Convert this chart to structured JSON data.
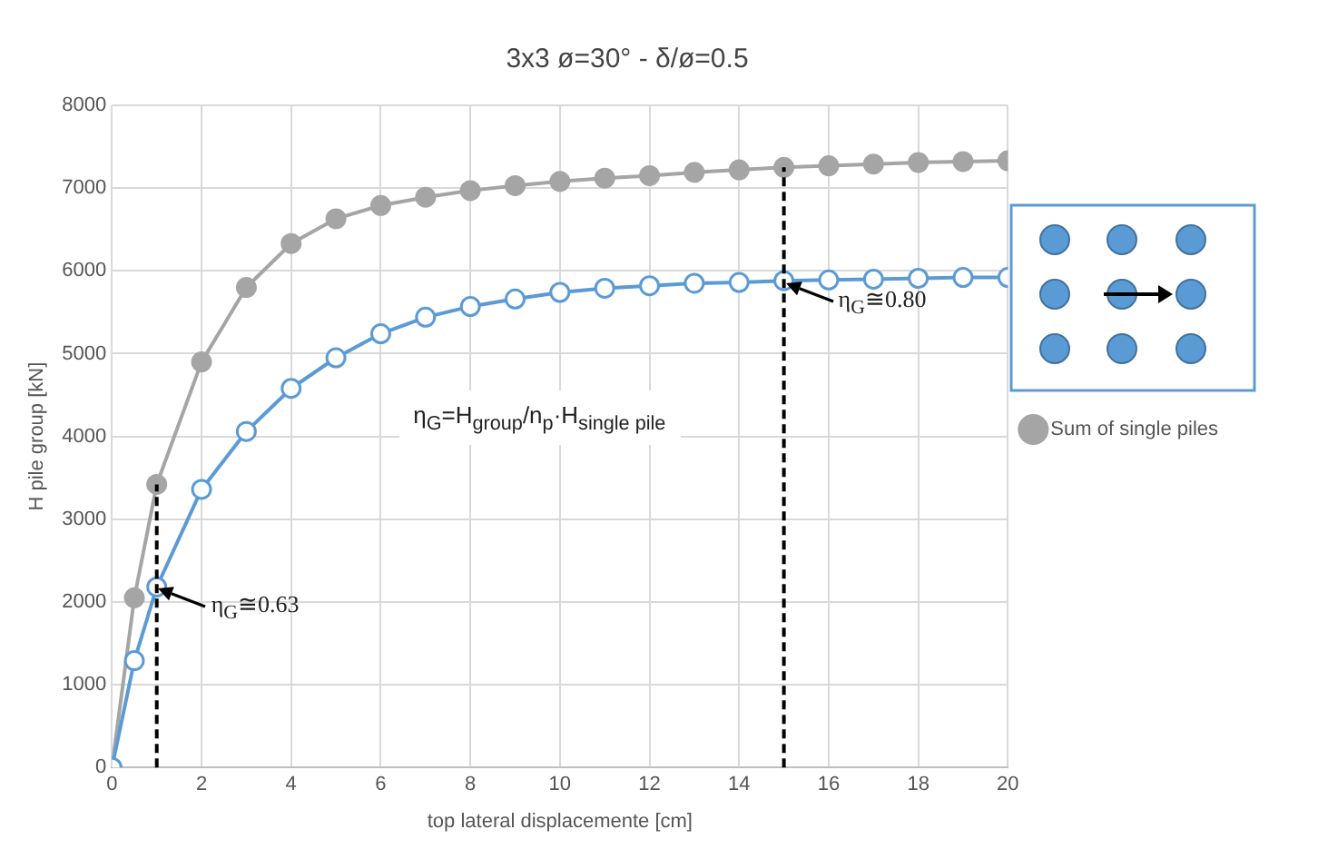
{
  "chart_data": {
    "type": "line",
    "title": "3x3 ø=30° - δ/ø=0.5",
    "xlabel": "top lateral displacemente [cm]",
    "ylabel": "H pile group [kN]",
    "x": [
      0,
      0.5,
      1,
      2,
      3,
      4,
      5,
      6,
      7,
      8,
      9,
      10,
      11,
      12,
      13,
      14,
      15,
      16,
      17,
      18,
      19,
      20
    ],
    "series": [
      {
        "color": "#5b9bd5",
        "values": [
          0,
          1290,
          2180,
          3360,
          4060,
          4580,
          4950,
          5240,
          5440,
          5570,
          5660,
          5740,
          5790,
          5820,
          5850,
          5860,
          5880,
          5890,
          5900,
          5910,
          5920,
          5920
        ]
      },
      {
        "name": "Sum of single piles",
        "color": "#a5a5a5",
        "values": [
          0,
          2050,
          3420,
          4900,
          5800,
          6330,
          6630,
          6790,
          6890,
          6970,
          7030,
          7080,
          7120,
          7150,
          7190,
          7220,
          7250,
          7270,
          7290,
          7310,
          7320,
          7330
        ]
      }
    ],
    "ref_lines": [
      {
        "axis": "x",
        "value": 1,
        "color": "#000000",
        "line_style": "dashed"
      },
      {
        "axis": "x",
        "value": 15,
        "color": "#000000",
        "line_style": "dashed"
      }
    ],
    "xlim": [
      0,
      20
    ],
    "xticks": [
      0,
      2,
      4,
      6,
      8,
      10,
      12,
      14,
      16,
      18,
      20
    ],
    "ylim": [
      0,
      8000
    ],
    "yticks": [
      0,
      1000,
      2000,
      3000,
      4000,
      5000,
      6000,
      7000,
      8000
    ],
    "grid": true,
    "legend": "right",
    "marker": "circle",
    "annotations": [
      {
        "text": "η$_{G}$≅0.63",
        "x": 1,
        "y": 2180
      },
      {
        "text": "η$_{G}$≅0.80",
        "x": 15,
        "y": 5880
      },
      "η$_{G}$=H$_{group}$/n$_{p}$·H$_{single pile}$"
    ]
  }
}
